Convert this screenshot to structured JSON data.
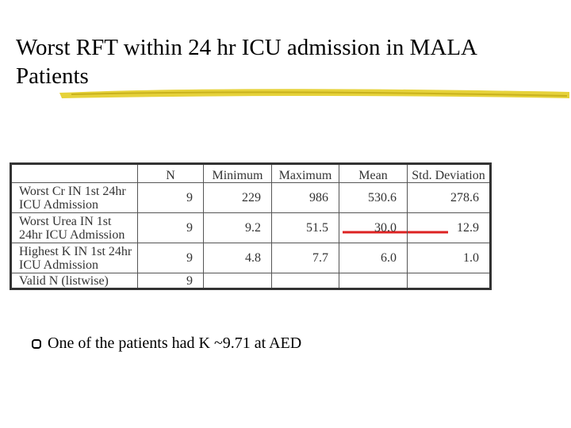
{
  "header": {
    "title": "Worst RFT within 24 hr ICU admission in MALA Patients"
  },
  "table": {
    "columns": [
      "N",
      "Minimum",
      "Maximum",
      "Mean",
      "Std. Deviation"
    ],
    "rows": [
      [
        "Worst Cr IN 1st 24hr ICU Admission",
        "9",
        "229",
        "986",
        "530.6",
        "278.6"
      ],
      [
        "Worst Urea IN 1st 24hr ICU Admission",
        "9",
        "9.2",
        "51.5",
        "30.0",
        "12.9"
      ],
      [
        "Highest K IN 1st 24hr ICU Admission",
        "9",
        "4.8",
        "7.7",
        "6.0",
        "1.0"
      ],
      [
        "Valid N (listwise)",
        "9"
      ]
    ]
  },
  "bullets": [
    "One of the patients had K ~9.71 at AED"
  ]
}
